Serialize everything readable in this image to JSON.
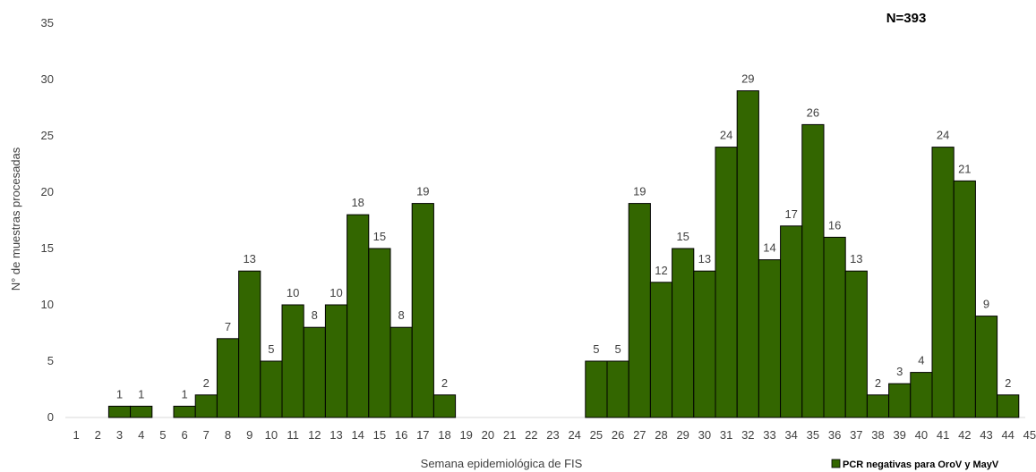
{
  "chart_data": {
    "type": "bar",
    "xlabel": "Semana epidemiológica de FIS",
    "ylabel": "N° de muestras procesadas",
    "ylim": [
      0,
      35
    ],
    "yticks": [
      0,
      5,
      10,
      15,
      20,
      25,
      30,
      35
    ],
    "grid": false,
    "legend_position": "bottom-right",
    "annotation": "N=393",
    "bar_color": "#336600",
    "categories": [
      "1",
      "2",
      "3",
      "4",
      "5",
      "6",
      "7",
      "8",
      "9",
      "10",
      "11",
      "12",
      "13",
      "14",
      "15",
      "16",
      "17",
      "18",
      "19",
      "20",
      "21",
      "22",
      "23",
      "24",
      "25",
      "26",
      "27",
      "28",
      "29",
      "30",
      "31",
      "32",
      "33",
      "34",
      "35",
      "36",
      "37",
      "38",
      "39",
      "40",
      "41",
      "42",
      "43",
      "44",
      "45"
    ],
    "series": [
      {
        "name": "PCR negativas para OroV y MayV",
        "values": [
          0,
          0,
          1,
          1,
          0,
          1,
          2,
          7,
          13,
          5,
          10,
          8,
          10,
          18,
          15,
          8,
          19,
          2,
          0,
          0,
          0,
          0,
          0,
          0,
          5,
          5,
          19,
          12,
          15,
          13,
          24,
          29,
          14,
          17,
          26,
          16,
          13,
          2,
          3,
          4,
          24,
          21,
          9,
          2,
          0
        ]
      }
    ]
  }
}
